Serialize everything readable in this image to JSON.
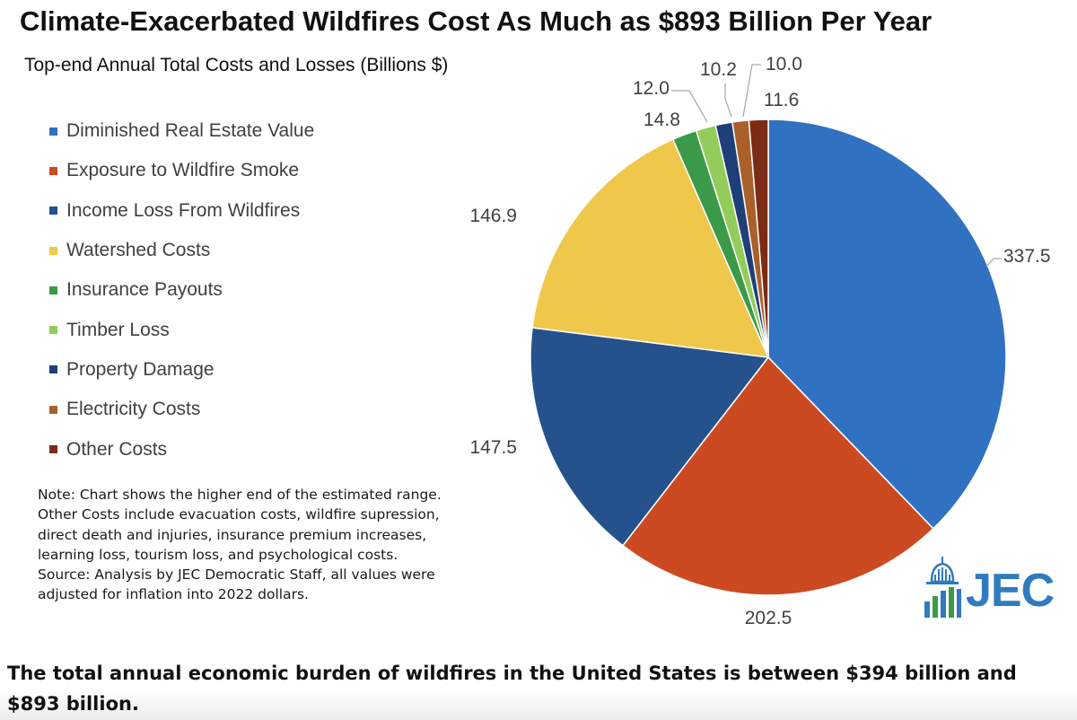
{
  "header": {
    "title": "Climate-Exacerbated Wildfires Cost As Much as $893 Billion Per Year"
  },
  "chart_data": {
    "type": "pie",
    "subtitle": "Top-end Annual Total Costs and Losses (Billions $)",
    "legend_position": "left",
    "start": "12 o'clock, clockwise",
    "categories": [
      "Diminished Real Estate Value",
      "Exposure to Wildfire Smoke",
      "Income Loss From Wildfires",
      "Watershed Costs",
      "Insurance Payouts",
      "Timber Loss",
      "Property Damage",
      "Electricity Costs",
      "Other Costs"
    ],
    "values": [
      337.5,
      202.5,
      147.5,
      146.9,
      14.8,
      12.0,
      10.2,
      10.0,
      11.6
    ],
    "data_labels": [
      "337.5",
      "202.5",
      "147.5",
      "146.9",
      "14.8",
      "12.0",
      "10.2",
      "10.0",
      "11.6"
    ],
    "colors": [
      "#3071c2",
      "#cc4a22",
      "#25528c",
      "#efc84b",
      "#3a9a48",
      "#92cc5a",
      "#1f3f78",
      "#a9602a",
      "#7c2b14"
    ]
  },
  "note": {
    "lines": [
      "Note: Chart shows the higher end of the estimated range.",
      "Other Costs include evacuation costs, wildfire supression,",
      "direct death and injuries, insurance premium increases,",
      "learning loss, tourism loss, and psychological costs.",
      "Source: Analysis by JEC Democratic Staff, all values were",
      "adjusted for inflation into 2022 dollars."
    ]
  },
  "logo": {
    "text": "JEC",
    "color": "#2f7bbf",
    "accent": "#3a9a48"
  },
  "caption": {
    "text": "The total annual economic burden of wildfires in the United States is between $394 billion and $893 billion."
  }
}
